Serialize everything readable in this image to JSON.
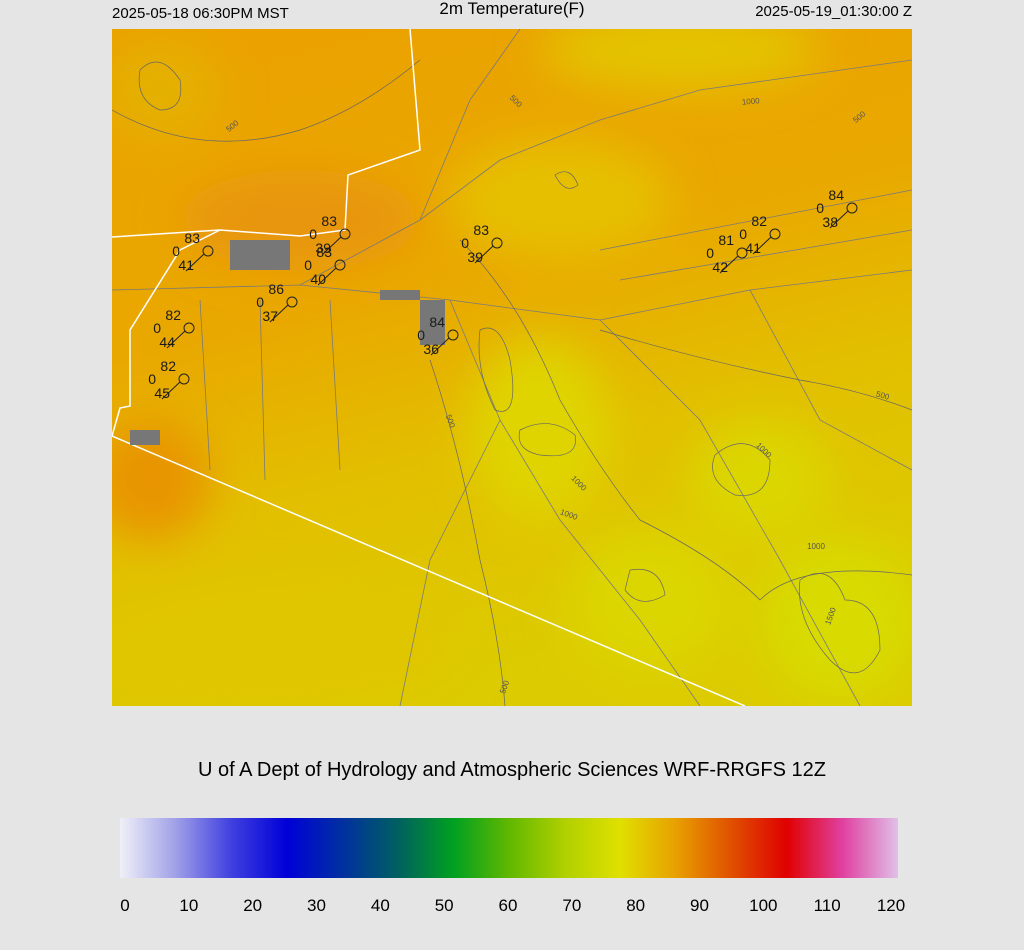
{
  "header": {
    "local_time": "2025-05-18 06:30PM MST",
    "title": "2m Temperature(F)",
    "utc_time": "2025-05-19_01:30:00 Z"
  },
  "stations": [
    {
      "temperature": 83,
      "wind": 0,
      "dewpoint": 41
    },
    {
      "temperature": 83,
      "wind": 0,
      "dewpoint": 39
    },
    {
      "temperature": 83,
      "wind": 0,
      "dewpoint": 40
    },
    {
      "temperature": 86,
      "wind": 0,
      "dewpoint": 37
    },
    {
      "temperature": 82,
      "wind": 0,
      "dewpoint": 44
    },
    {
      "temperature": 82,
      "wind": 0,
      "dewpoint": 45
    },
    {
      "temperature": 84,
      "wind": 0,
      "dewpoint": 36
    },
    {
      "temperature": 83,
      "wind": 0,
      "dewpoint": 39
    },
    {
      "temperature": 81,
      "wind": 0,
      "dewpoint": 42
    },
    {
      "temperature": 82,
      "wind": 0,
      "dewpoint": 41
    },
    {
      "temperature": 84,
      "wind": 0,
      "dewpoint": 38
    }
  ],
  "contour_labels": [
    500,
    500,
    1000,
    500,
    500,
    500,
    1000,
    1000,
    1000,
    1000,
    1500,
    500
  ],
  "footer": {
    "credit": "U of A Dept of Hydrology and Atmospheric Sciences WRF-RRGFS 12Z"
  },
  "colorbar": {
    "ticks": [
      0,
      10,
      20,
      30,
      40,
      50,
      60,
      70,
      80,
      90,
      100,
      110,
      120
    ],
    "colors": [
      "#f0f0f8",
      "#a0a0e8",
      "#4040e0",
      "#0000d8",
      "#0030a0",
      "#006060",
      "#00a020",
      "#60b800",
      "#b0d000",
      "#e0e000",
      "#e8a000",
      "#e05000",
      "#e00000",
      "#e040a0",
      "#e0c0e8"
    ]
  }
}
